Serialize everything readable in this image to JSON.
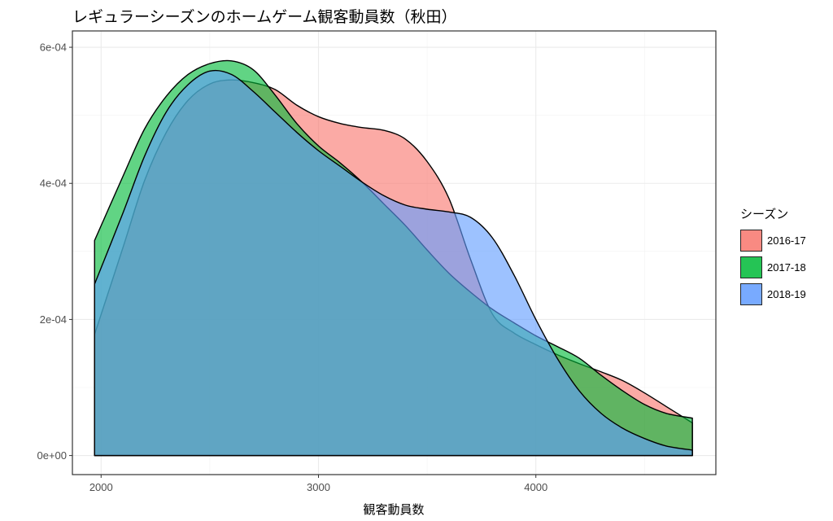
{
  "chart_data": {
    "type": "area",
    "title": "レギュラーシーズンのホームゲーム観客動員数（秋田）",
    "xlabel": "観客動員数",
    "ylabel": "",
    "xlim": [
      1970,
      4720
    ],
    "ylim": [
      0,
      0.0006
    ],
    "x_ticks": [
      2000,
      3000,
      4000
    ],
    "x_tick_labels": [
      "2000",
      "3000",
      "4000"
    ],
    "y_ticks": [
      0,
      0.0002,
      0.0004,
      0.0006
    ],
    "y_tick_labels": [
      "0e+00",
      "2e-04",
      "4e-04",
      "6e-04"
    ],
    "grid": true,
    "legend_title": "シーズン",
    "legend_position": "right",
    "series": [
      {
        "name": "2016-17",
        "color": "#F8766D",
        "points": [
          [
            1970,
            0.000178
          ],
          [
            2100,
            0.000305
          ],
          [
            2200,
            0.000404
          ],
          [
            2300,
            0.000475
          ],
          [
            2400,
            0.000522
          ],
          [
            2500,
            0.000546
          ],
          [
            2600,
            0.000552
          ],
          [
            2700,
            0.000548
          ],
          [
            2800,
            0.000538
          ],
          [
            2900,
            0.000515
          ],
          [
            3000,
            0.000498
          ],
          [
            3100,
            0.000488
          ],
          [
            3200,
            0.000482
          ],
          [
            3300,
            0.000478
          ],
          [
            3400,
            0.000465
          ],
          [
            3500,
            0.000432
          ],
          [
            3600,
            0.000378
          ],
          [
            3700,
            0.000288
          ],
          [
            3800,
            0.000208
          ],
          [
            3900,
            0.00018
          ],
          [
            4000,
            0.000163
          ],
          [
            4100,
            0.000148
          ],
          [
            4200,
            0.000135
          ],
          [
            4300,
            0.000123
          ],
          [
            4400,
            0.00011
          ],
          [
            4500,
            9.2e-05
          ],
          [
            4600,
            7.2e-05
          ],
          [
            4720,
            4.8e-05
          ]
        ]
      },
      {
        "name": "2017-18",
        "color": "#00BA38",
        "points": [
          [
            1970,
            0.000316
          ],
          [
            2100,
            0.00041
          ],
          [
            2200,
            0.00048
          ],
          [
            2300,
            0.000528
          ],
          [
            2400,
            0.00056
          ],
          [
            2500,
            0.000576
          ],
          [
            2600,
            0.00058
          ],
          [
            2700,
            0.000567
          ],
          [
            2800,
            0.00053
          ],
          [
            2900,
            0.000488
          ],
          [
            3000,
            0.000455
          ],
          [
            3100,
            0.00043
          ],
          [
            3200,
            0.000402
          ],
          [
            3300,
            0.00037
          ],
          [
            3400,
            0.000338
          ],
          [
            3500,
            0.000302
          ],
          [
            3600,
            0.000268
          ],
          [
            3700,
            0.00024
          ],
          [
            3800,
            0.000215
          ],
          [
            3900,
            0.000195
          ],
          [
            4000,
            0.000176
          ],
          [
            4100,
            0.00016
          ],
          [
            4200,
            0.000143
          ],
          [
            4300,
            0.000118
          ],
          [
            4400,
            9.5e-05
          ],
          [
            4500,
            7.5e-05
          ],
          [
            4600,
            6.2e-05
          ],
          [
            4720,
            5.5e-05
          ]
        ]
      },
      {
        "name": "2018-19",
        "color": "#619CFF",
        "points": [
          [
            1970,
            0.000252
          ],
          [
            2100,
            0.000356
          ],
          [
            2200,
            0.00044
          ],
          [
            2300,
            0.000505
          ],
          [
            2400,
            0.000545
          ],
          [
            2500,
            0.000565
          ],
          [
            2600,
            0.00056
          ],
          [
            2700,
            0.000535
          ],
          [
            2800,
            0.000505
          ],
          [
            2900,
            0.000475
          ],
          [
            3000,
            0.000448
          ],
          [
            3100,
            0.000425
          ],
          [
            3200,
            0.000402
          ],
          [
            3300,
            0.000382
          ],
          [
            3400,
            0.000368
          ],
          [
            3500,
            0.000362
          ],
          [
            3600,
            0.000358
          ],
          [
            3700,
            0.00035
          ],
          [
            3800,
            0.00032
          ],
          [
            3900,
            0.000265
          ],
          [
            4000,
            0.0002
          ],
          [
            4100,
            0.000142
          ],
          [
            4200,
            9.5e-05
          ],
          [
            4300,
            6.2e-05
          ],
          [
            4400,
            4e-05
          ],
          [
            4500,
            2.5e-05
          ],
          [
            4600,
            1.4e-05
          ],
          [
            4720,
            8e-06
          ]
        ]
      }
    ]
  }
}
